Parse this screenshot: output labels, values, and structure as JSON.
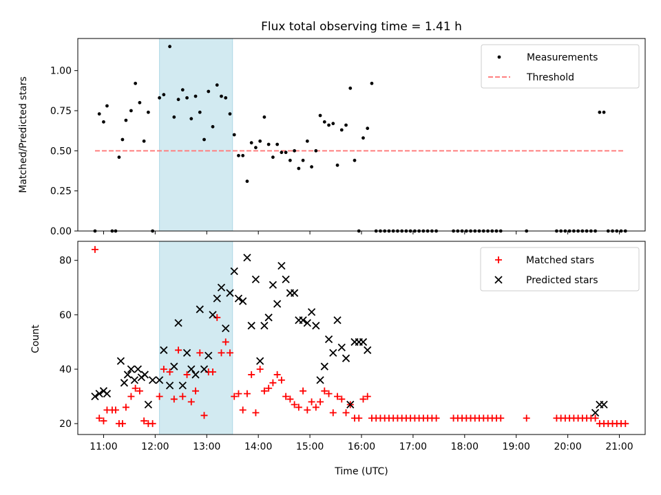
{
  "title": "Flux total observing time = 1.41 h",
  "xlabel": "Time (UTC)",
  "colors": {
    "measurements": "#000000",
    "threshold": "#ff7f7f",
    "matched": "#ff0000",
    "predicted": "#000000",
    "shade": "#add8e6"
  },
  "chart_data": [
    {
      "type": "scatter",
      "ylabel": "Matched/Predicted stars",
      "xlim": [
        "10:30",
        "21:30"
      ],
      "ylim": [
        0,
        1.2
      ],
      "xticks": [
        "11:00",
        "12:00",
        "13:00",
        "14:00",
        "15:00",
        "16:00",
        "17:00",
        "18:00",
        "19:00",
        "20:00",
        "21:00"
      ],
      "yticks": [
        "0.00",
        "0.25",
        "0.50",
        "0.75",
        "1.00"
      ],
      "shaded_interval": [
        "12:05",
        "13:30"
      ],
      "legend": {
        "placement": "top-right",
        "entries": [
          "Measurements",
          "Threshold"
        ]
      },
      "threshold": {
        "name": "Threshold",
        "value": 0.5,
        "x": [
          "10:50",
          "21:05"
        ]
      },
      "series": [
        {
          "name": "Measurements",
          "x": [
            "10:50",
            "10:55",
            "11:00",
            "11:04",
            "11:10",
            "11:14",
            "11:18",
            "11:22",
            "11:26",
            "11:32",
            "11:37",
            "11:42",
            "11:47",
            "11:52",
            "11:57",
            "12:05",
            "12:10",
            "12:17",
            "12:22",
            "12:27",
            "12:32",
            "12:37",
            "12:42",
            "12:47",
            "12:52",
            "12:57",
            "13:02",
            "13:07",
            "13:12",
            "13:17",
            "13:22",
            "13:27",
            "13:32",
            "13:37",
            "13:42",
            "13:47",
            "13:52",
            "13:57",
            "14:02",
            "14:07",
            "14:12",
            "14:17",
            "14:22",
            "14:27",
            "14:32",
            "14:37",
            "14:42",
            "14:47",
            "14:52",
            "14:57",
            "15:02",
            "15:07",
            "15:12",
            "15:17",
            "15:22",
            "15:27",
            "15:32",
            "15:37",
            "15:42",
            "15:47",
            "15:52",
            "15:57",
            "16:02",
            "16:07",
            "16:12",
            "16:17",
            "16:22",
            "16:27",
            "16:32",
            "16:37",
            "16:42",
            "16:47",
            "16:52",
            "16:57",
            "17:02",
            "17:07",
            "17:12",
            "17:17",
            "17:22",
            "17:27",
            "17:47",
            "17:52",
            "17:57",
            "18:02",
            "18:07",
            "18:12",
            "18:17",
            "18:22",
            "18:27",
            "18:32",
            "18:37",
            "18:42",
            "19:12",
            "19:47",
            "19:52",
            "19:57",
            "20:02",
            "20:07",
            "20:12",
            "20:17",
            "20:22",
            "20:27",
            "20:32",
            "20:37",
            "20:42",
            "20:47",
            "20:52",
            "20:57",
            "21:02",
            "21:07"
          ],
          "y": [
            0.0,
            0.73,
            0.68,
            0.78,
            0.0,
            0.0,
            0.46,
            0.57,
            0.69,
            0.75,
            0.92,
            0.8,
            0.56,
            0.74,
            0.0,
            0.83,
            0.85,
            1.15,
            0.71,
            0.82,
            0.88,
            0.83,
            0.7,
            0.84,
            0.74,
            0.57,
            0.87,
            0.65,
            0.91,
            0.84,
            0.83,
            0.73,
            0.6,
            0.47,
            0.47,
            0.31,
            0.55,
            0.52,
            0.56,
            0.71,
            0.54,
            0.46,
            0.54,
            0.49,
            0.49,
            0.44,
            0.5,
            0.39,
            0.44,
            0.56,
            0.4,
            0.5,
            0.72,
            0.68,
            0.66,
            0.67,
            0.41,
            0.63,
            0.66,
            0.89,
            0.44,
            0.0,
            0.58,
            0.64,
            0.92,
            0.0,
            0.0,
            0.0,
            0.0,
            0.0,
            0.0,
            0.0,
            0.0,
            0.0,
            0.0,
            0.0,
            0.0,
            0.0,
            0.0,
            0.0,
            0.0,
            0.0,
            0.0,
            0.0,
            0.0,
            0.0,
            0.0,
            0.0,
            0.0,
            0.0,
            0.0,
            0.0,
            0.0,
            0.0,
            0.0,
            0.0,
            0.0,
            0.0,
            0.0,
            0.0,
            0.0,
            0.0,
            0.0,
            0.74,
            0.74,
            0.0,
            0.0,
            0.0,
            0.0,
            0.0
          ]
        }
      ]
    },
    {
      "type": "scatter",
      "ylabel": "Count",
      "xlim": [
        "10:30",
        "21:30"
      ],
      "ylim": [
        16,
        87
      ],
      "xticks": [
        "11:00",
        "12:00",
        "13:00",
        "14:00",
        "15:00",
        "16:00",
        "17:00",
        "18:00",
        "19:00",
        "20:00",
        "21:00"
      ],
      "yticks": [
        "20",
        "40",
        "60",
        "80"
      ],
      "shaded_interval": [
        "12:05",
        "13:30"
      ],
      "legend": {
        "placement": "top-right",
        "entries": [
          "Matched stars",
          "Predicted stars"
        ]
      },
      "series": [
        {
          "name": "Matched stars",
          "marker": "plus",
          "x": [
            "10:50",
            "10:55",
            "11:00",
            "11:04",
            "11:10",
            "11:14",
            "11:18",
            "11:22",
            "11:26",
            "11:32",
            "11:37",
            "11:42",
            "11:47",
            "11:52",
            "11:57",
            "12:05",
            "12:10",
            "12:17",
            "12:22",
            "12:27",
            "12:32",
            "12:37",
            "12:42",
            "12:47",
            "12:52",
            "12:57",
            "13:02",
            "13:07",
            "13:12",
            "13:17",
            "13:22",
            "13:27",
            "13:32",
            "13:37",
            "13:42",
            "13:47",
            "13:52",
            "13:57",
            "14:02",
            "14:07",
            "14:12",
            "14:17",
            "14:22",
            "14:27",
            "14:32",
            "14:37",
            "14:42",
            "14:47",
            "14:52",
            "14:57",
            "15:02",
            "15:07",
            "15:12",
            "15:17",
            "15:22",
            "15:27",
            "15:32",
            "15:37",
            "15:42",
            "15:47",
            "15:52",
            "15:57",
            "16:02",
            "16:07",
            "16:12",
            "16:17",
            "16:22",
            "16:27",
            "16:32",
            "16:37",
            "16:42",
            "16:47",
            "16:52",
            "16:57",
            "17:02",
            "17:07",
            "17:12",
            "17:17",
            "17:22",
            "17:27",
            "17:47",
            "17:52",
            "17:57",
            "18:02",
            "18:07",
            "18:12",
            "18:17",
            "18:22",
            "18:27",
            "18:32",
            "18:37",
            "18:42",
            "19:12",
            "19:47",
            "19:52",
            "19:57",
            "20:02",
            "20:07",
            "20:12",
            "20:17",
            "20:22",
            "20:27",
            "20:32",
            "20:37",
            "20:42",
            "20:47",
            "20:52",
            "20:57",
            "21:02",
            "21:07"
          ],
          "y": [
            84,
            22,
            21,
            25,
            25,
            25,
            20,
            20,
            26,
            30,
            33,
            32,
            21,
            20,
            20,
            30,
            40,
            39,
            29,
            47,
            30,
            38,
            28,
            32,
            46,
            23,
            39,
            39,
            59,
            46,
            50,
            46,
            30,
            31,
            25,
            31,
            38,
            24,
            40,
            32,
            33,
            35,
            38,
            36,
            30,
            29,
            27,
            26,
            32,
            25,
            28,
            26,
            28,
            32,
            31,
            24,
            30,
            29,
            24,
            27,
            22,
            22,
            29,
            30,
            22,
            22,
            22,
            22,
            22,
            22,
            22,
            22,
            22,
            22,
            22,
            22,
            22,
            22,
            22,
            22,
            22,
            22,
            22,
            22,
            22,
            22,
            22,
            22,
            22,
            22,
            22,
            22,
            22,
            22,
            22,
            22,
            22,
            22,
            22,
            22,
            22,
            22,
            22,
            20,
            20,
            20,
            20,
            20,
            20,
            20
          ]
        },
        {
          "name": "Predicted stars",
          "marker": "x",
          "x": [
            "10:50",
            "10:55",
            "11:00",
            "11:04",
            "11:20",
            "11:24",
            "11:28",
            "11:32",
            "11:36",
            "11:40",
            "11:44",
            "11:48",
            "11:52",
            "11:57",
            "12:05",
            "12:10",
            "12:17",
            "12:22",
            "12:27",
            "12:32",
            "12:37",
            "12:42",
            "12:47",
            "12:52",
            "12:57",
            "13:02",
            "13:07",
            "13:12",
            "13:17",
            "13:22",
            "13:27",
            "13:32",
            "13:37",
            "13:42",
            "13:47",
            "13:52",
            "13:57",
            "14:02",
            "14:07",
            "14:12",
            "14:17",
            "14:22",
            "14:27",
            "14:32",
            "14:37",
            "14:42",
            "14:47",
            "14:52",
            "14:57",
            "15:02",
            "15:07",
            "15:12",
            "15:17",
            "15:22",
            "15:27",
            "15:32",
            "15:37",
            "15:42",
            "15:47",
            "15:52",
            "15:57",
            "16:02",
            "16:07",
            "20:32",
            "20:37",
            "20:42"
          ],
          "y": [
            30,
            31,
            32,
            31,
            43,
            35,
            38,
            40,
            36,
            40,
            37,
            38,
            27,
            36,
            36,
            47,
            34,
            41,
            57,
            34,
            46,
            40,
            38,
            62,
            40,
            45,
            60,
            66,
            70,
            55,
            68,
            76,
            66,
            65,
            81,
            56,
            73,
            43,
            56,
            59,
            71,
            64,
            78,
            73,
            68,
            68,
            58,
            58,
            57,
            61,
            56,
            36,
            41,
            51,
            46,
            58,
            48,
            44,
            27,
            50,
            50,
            50,
            47,
            24,
            27,
            27
          ]
        }
      ]
    }
  ]
}
